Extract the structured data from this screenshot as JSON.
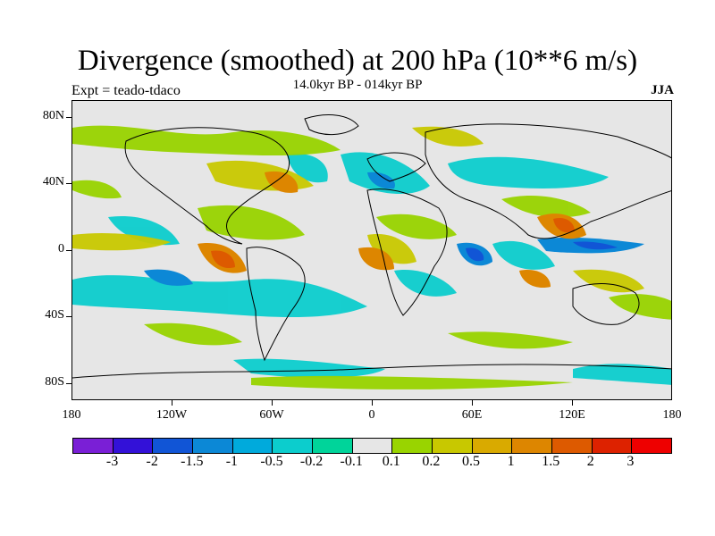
{
  "title": "Divergence (smoothed) at 200 hPa (10**6 m/s)",
  "experiment": "Expt = teado-tdaco",
  "subtitle": "14.0kyr BP - 014kyr BP",
  "season": "JJA",
  "y_axis": {
    "labels": [
      "80N",
      "40N",
      "0",
      "40S",
      "80S"
    ]
  },
  "x_axis": {
    "labels": [
      "180",
      "120W",
      "60W",
      "0",
      "60E",
      "120E",
      "180"
    ]
  },
  "colorbar": {
    "colors": [
      "#7a1fd6",
      "#3311d8",
      "#1155d6",
      "#0c88d6",
      "#00aadc",
      "#0ccdcd",
      "#00d49a",
      "#e6e6e6",
      "#99d400",
      "#c8c800",
      "#d9aa00",
      "#dd8600",
      "#dd5a00",
      "#dd2200",
      "#ee0000"
    ],
    "labels": [
      "-3",
      "-2",
      "-1.5",
      "-1",
      "-0.5",
      "-0.2",
      "-0.1",
      "0.1",
      "0.2",
      "0.5",
      "1",
      "1.5",
      "2",
      "3"
    ]
  }
}
